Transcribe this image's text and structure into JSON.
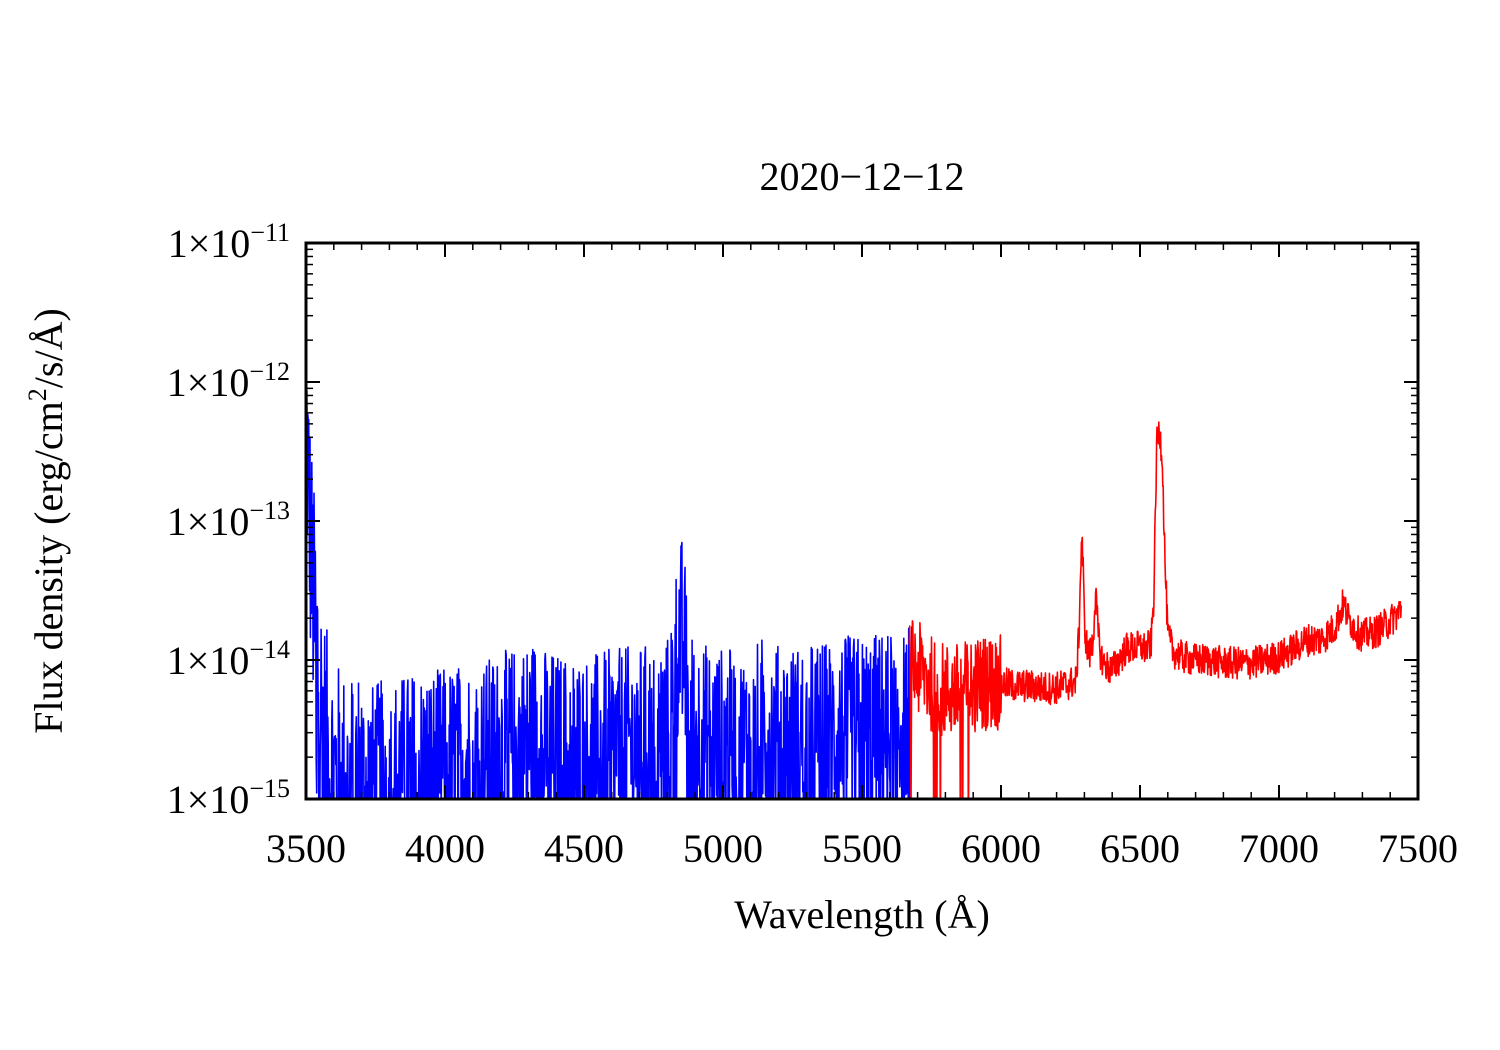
{
  "chart_data": {
    "type": "line",
    "title": "2020−12−12",
    "xlabel": "Wavelength (Å)",
    "ylabel": "Flux density (erg/cm2/s/Å)",
    "ylabel_parts": {
      "before": "Flux density (erg/cm",
      "sup": "2",
      "after": "/s/Å)"
    },
    "x_unit": "Å",
    "y_unit": "erg/cm2/s/Å",
    "xlim": [
      3500,
      7500
    ],
    "ylim": [
      1e-15,
      1e-11
    ],
    "y_scale": "log",
    "grid": false,
    "x_ticks": [
      {
        "value": 3500,
        "label": "3500"
      },
      {
        "value": 4000,
        "label": "4000"
      },
      {
        "value": 4500,
        "label": "4500"
      },
      {
        "value": 5000,
        "label": "5000"
      },
      {
        "value": 5500,
        "label": "5500"
      },
      {
        "value": 6000,
        "label": "6000"
      },
      {
        "value": 6500,
        "label": "6500"
      },
      {
        "value": 7000,
        "label": "7000"
      },
      {
        "value": 7500,
        "label": "7500"
      }
    ],
    "y_ticks": [
      {
        "value": 1e-15,
        "mantissa": "1×10",
        "exponent": "−15"
      },
      {
        "value": 1e-14,
        "mantissa": "1×10",
        "exponent": "−14"
      },
      {
        "value": 1e-13,
        "mantissa": "1×10",
        "exponent": "−13"
      },
      {
        "value": 1e-12,
        "mantissa": "1×10",
        "exponent": "−12"
      },
      {
        "value": 1e-11,
        "mantissa": "1×10",
        "exponent": "−11"
      }
    ],
    "series": [
      {
        "color": "#0000ff",
        "x": [
          3500,
          3505,
          3510,
          3515,
          3520,
          3530,
          3540,
          3550,
          3560,
          3570,
          3580,
          3600,
          3620,
          3640,
          3660,
          3680,
          3700,
          3750,
          3800,
          3850,
          3900,
          3950,
          4000,
          4050,
          4100,
          4150,
          4200,
          4250,
          4300,
          4320,
          4340,
          4350,
          4400,
          4450,
          4500,
          4550,
          4600,
          4650,
          4700,
          4750,
          4800,
          4820,
          4840,
          4850,
          4860,
          4870,
          4880,
          4900,
          4950,
          5000,
          5050,
          5100,
          5140,
          5150,
          5160,
          5200,
          5250,
          5300,
          5350,
          5400,
          5450,
          5500,
          5550,
          5600,
          5640,
          5660,
          5680
        ],
        "y": [
          7e-13,
          3e-13,
          1.5e-13,
          8e-14,
          5e-14,
          2e-14,
          1.1e-14,
          6e-15,
          3.5e-15,
          2.5e-15,
          1.8e-15,
          1.4e-15,
          1.2e-15,
          1.1e-15,
          1.1e-15,
          1.2e-15,
          1.3e-15,
          1.4e-15,
          1.5e-15,
          1.6e-15,
          1.7e-15,
          1.7e-15,
          1.8e-15,
          1.9e-15,
          2e-15,
          2.1e-15,
          2.3e-15,
          2.5e-15,
          2.8e-15,
          3e-15,
          2.8e-15,
          2.5e-15,
          2.3e-15,
          2.2e-15,
          2.2e-15,
          2.3e-15,
          2.4e-15,
          2.5e-15,
          2.6e-15,
          2.7e-15,
          3e-15,
          6e-15,
          1.5e-14,
          1.6e-14,
          1.3e-14,
          6e-15,
          3.5e-15,
          3e-15,
          2.6e-15,
          2.5e-15,
          2.4e-15,
          2.4e-15,
          3e-15,
          4e-15,
          3e-15,
          2.6e-15,
          2.6e-15,
          2.7e-15,
          2.8e-15,
          2.9e-15,
          3e-15,
          3.1e-15,
          3.2e-15,
          3.4e-15,
          3.6e-15,
          3.8e-15,
          4e-15
        ]
      },
      {
        "color": "#ff0000",
        "x": [
          5670,
          5680,
          5700,
          5720,
          5740,
          5760,
          5780,
          5800,
          5850,
          5900,
          5950,
          6000,
          6050,
          6100,
          6150,
          6200,
          6250,
          6270,
          6280,
          6290,
          6295,
          6300,
          6310,
          6320,
          6330,
          6340,
          6350,
          6360,
          6370,
          6380,
          6400,
          6450,
          6500,
          6520,
          6540,
          6550,
          6560,
          6570,
          6580,
          6590,
          6600,
          6620,
          6650,
          6700,
          6750,
          6800,
          6850,
          6900,
          6950,
          7000,
          7050,
          7100,
          7150,
          7200,
          7230,
          7250,
          7280,
          7300,
          7350,
          7400,
          7440
        ],
        "y": [
          1e-14,
          9e-15,
          8.5e-15,
          8e-15,
          7e-15,
          6.5e-15,
          6.2e-15,
          6e-15,
          6e-15,
          6.5e-15,
          7e-15,
          6.8e-15,
          6.5e-15,
          6.5e-15,
          6.3e-15,
          6.3e-15,
          6.8e-15,
          7e-15,
          1.5e-14,
          8e-14,
          5e-14,
          1.8e-14,
          1.2e-14,
          1.1e-14,
          1.3e-14,
          3e-14,
          1.5e-14,
          1.05e-14,
          9.5e-15,
          9e-15,
          8.5e-15,
          1.2e-14,
          1.25e-14,
          1.2e-14,
          1.3e-14,
          3e-14,
          3.5e-13,
          4.5e-13,
          3e-13,
          5e-14,
          1.5e-14,
          1.15e-14,
          1.05e-14,
          1e-14,
          1e-14,
          9.5e-15,
          9.5e-15,
          9.5e-15,
          1e-14,
          1.05e-14,
          1.2e-14,
          1.4e-14,
          1.4e-14,
          1.7e-14,
          2.5e-14,
          2e-14,
          1.6e-14,
          1.5e-14,
          1.6e-14,
          1.9e-14,
          2.3e-14
        ]
      }
    ]
  }
}
